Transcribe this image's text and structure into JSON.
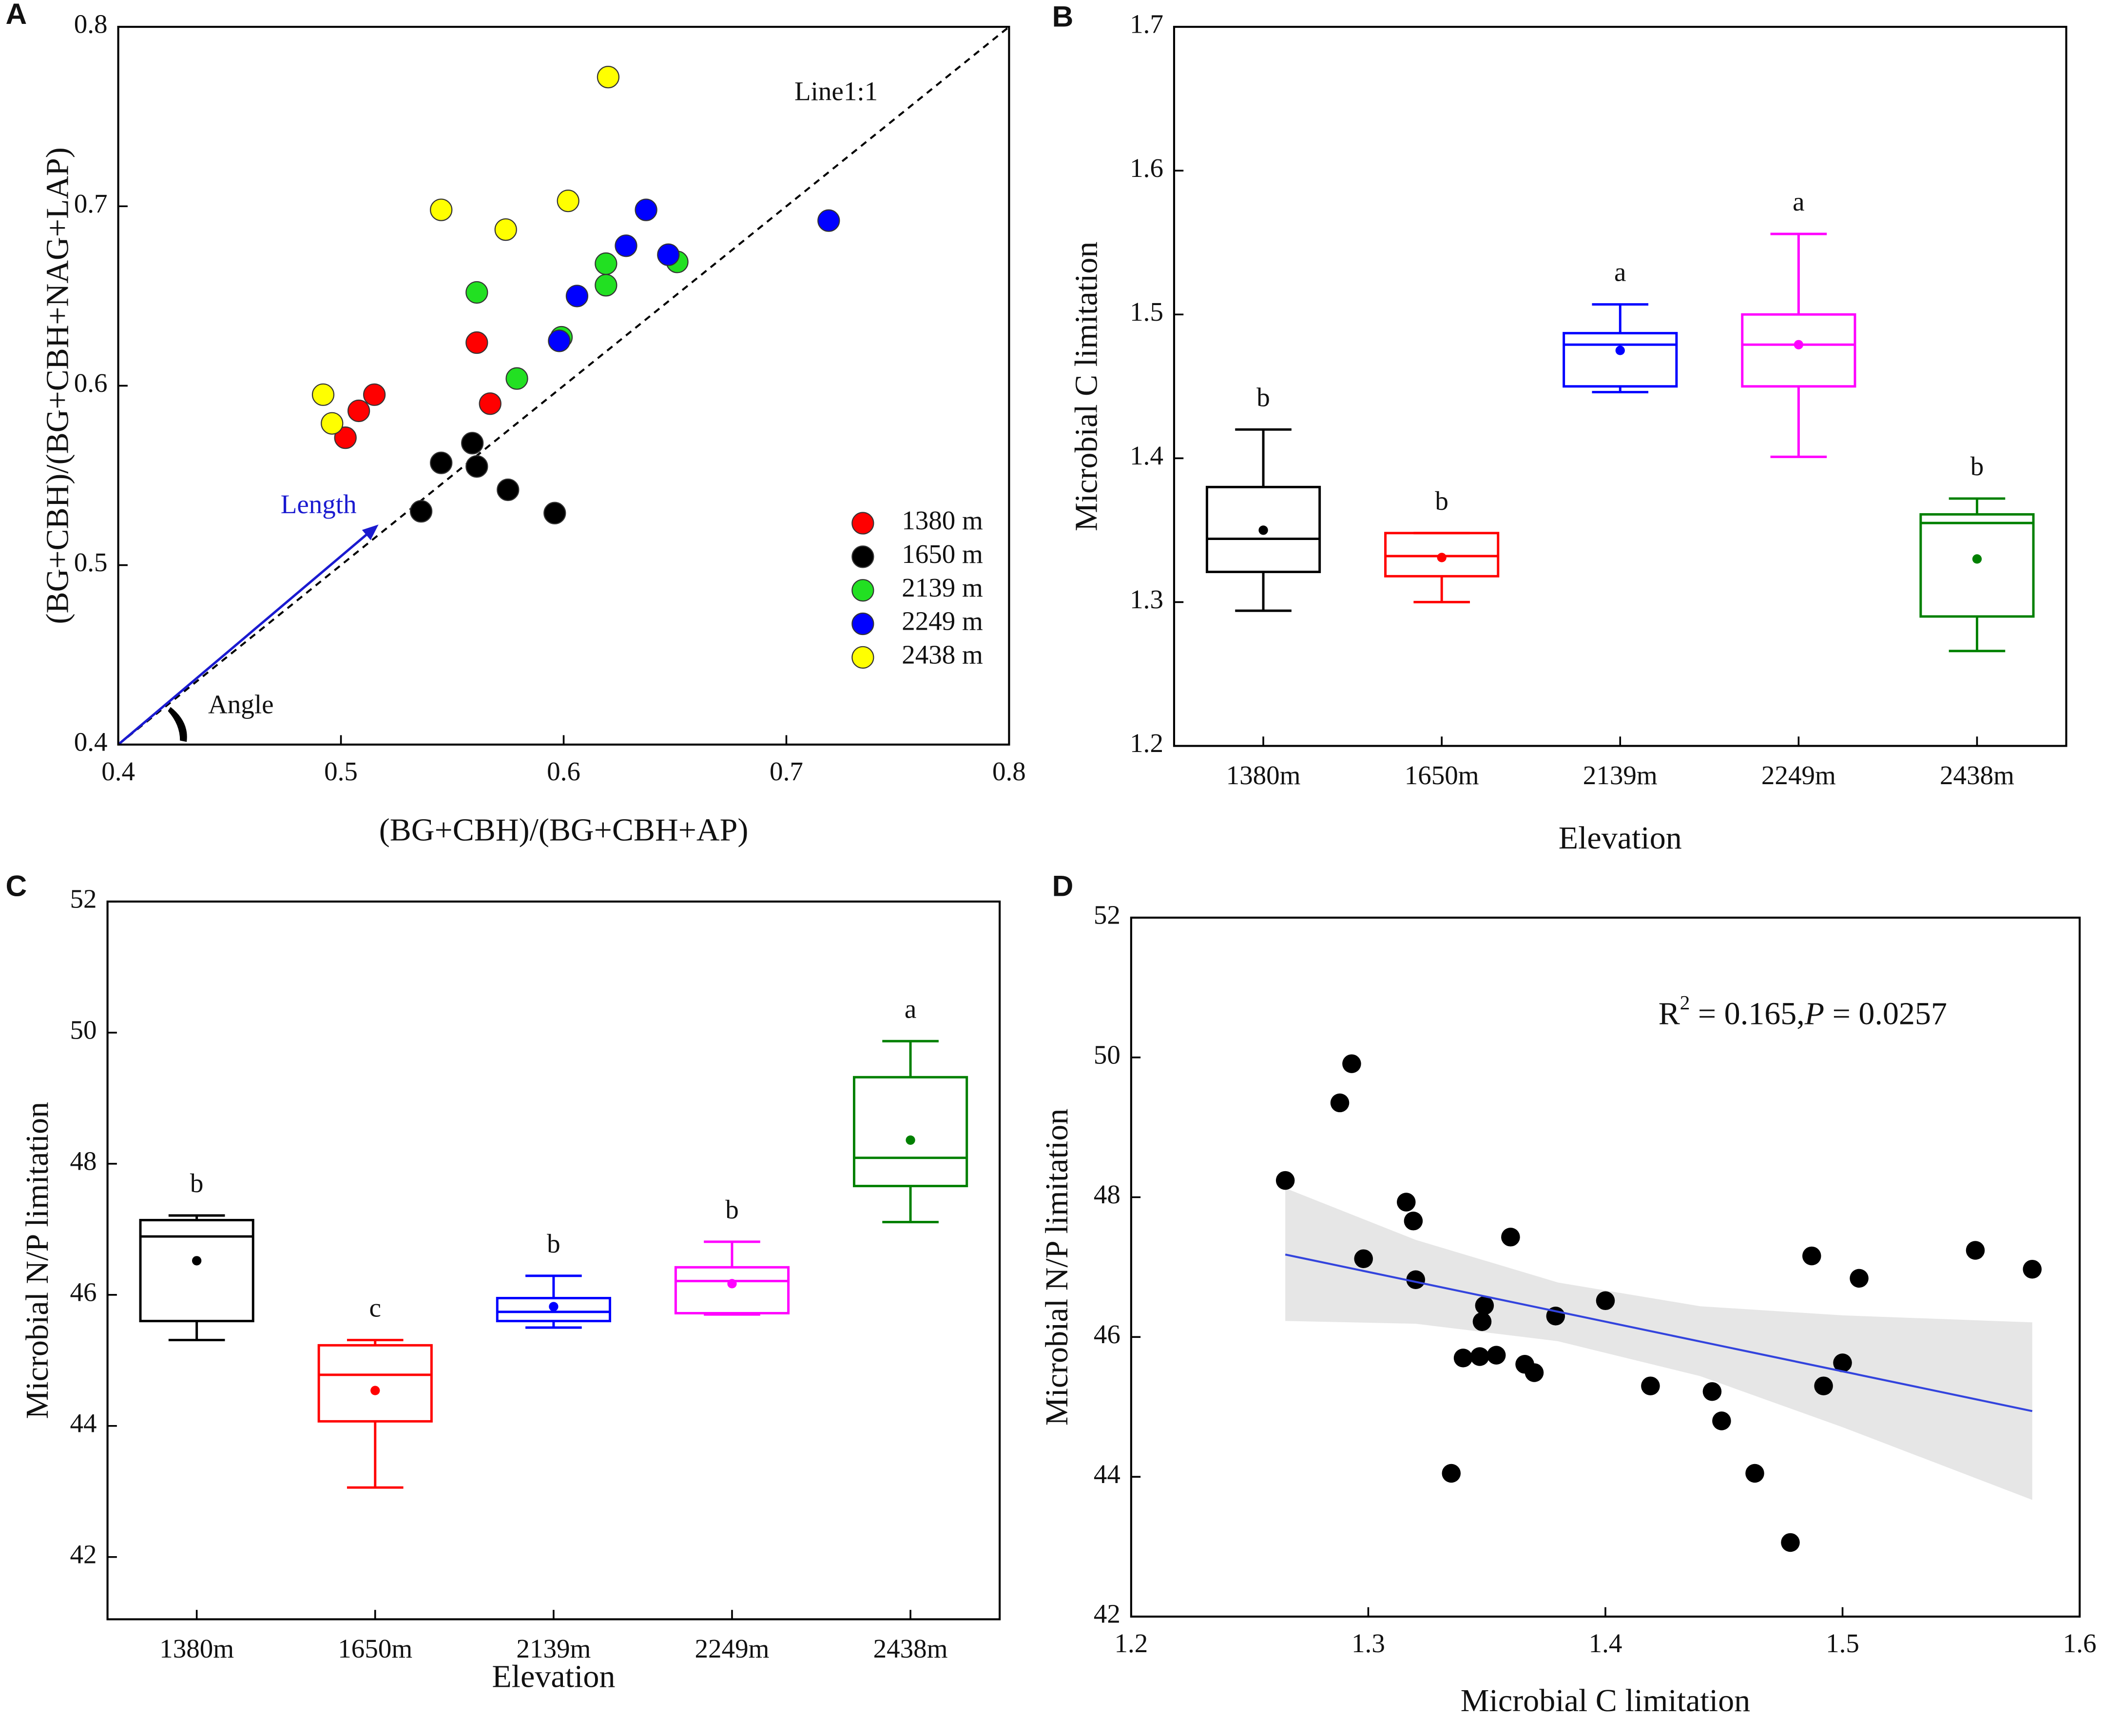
{
  "chart_data": [
    {
      "type": "scatter",
      "panel": "A",
      "x_label": "(BG+CBH)/(BG+CBH+AP)",
      "y_label": "(BG+CBH)/(BG+CBH+NAG+LAP)",
      "annotations": [
        "Line1:1",
        "Length",
        "Angle"
      ],
      "xlim": [
        0.4,
        0.8
      ],
      "ylim": [
        0.4,
        0.8
      ],
      "xticks": [
        0.4,
        0.5,
        0.6,
        0.7,
        0.8
      ],
      "yticks": [
        0.4,
        0.5,
        0.6,
        0.7,
        0.8
      ],
      "legend": "lower right",
      "series": [
        {
          "name": "1380 m",
          "color": "#ff0000",
          "x": [
            0.508,
            0.515,
            0.502,
            0.561,
            0.567
          ],
          "y": [
            0.586,
            0.595,
            0.571,
            0.624,
            0.59
          ]
        },
        {
          "name": "1650 m",
          "color": "#000000",
          "x": [
            0.536,
            0.545,
            0.559,
            0.561,
            0.575,
            0.596
          ],
          "y": [
            0.53,
            0.557,
            0.568,
            0.555,
            0.542,
            0.529
          ]
        },
        {
          "name": "2139 m",
          "color": "#22e022",
          "x": [
            0.561,
            0.579,
            0.599,
            0.619,
            0.619,
            0.651
          ],
          "y": [
            0.652,
            0.604,
            0.627,
            0.668,
            0.656,
            0.669
          ]
        },
        {
          "name": "2249 m",
          "color": "#0000ff",
          "x": [
            0.598,
            0.606,
            0.628,
            0.637,
            0.647,
            0.719
          ],
          "y": [
            0.625,
            0.65,
            0.678,
            0.698,
            0.673,
            0.692
          ]
        },
        {
          "name": "2438 m",
          "color": "#ffff00",
          "x": [
            0.492,
            0.496,
            0.545,
            0.574,
            0.602,
            0.62
          ],
          "y": [
            0.595,
            0.579,
            0.698,
            0.687,
            0.703,
            0.772
          ]
        }
      ]
    },
    {
      "type": "box",
      "panel": "B",
      "x_label": "Elevation",
      "y_label": "Microbial C limitation",
      "categories": [
        "1380m",
        "1650m",
        "2139m",
        "2249m",
        "2438m"
      ],
      "ylim": [
        1.2,
        1.7
      ],
      "yticks": [
        1.2,
        1.3,
        1.4,
        1.5,
        1.6,
        1.7
      ],
      "colors": [
        "#000000",
        "#ff0000",
        "#0000ff",
        "#ff00ff",
        "#008000"
      ],
      "whisker_low": [
        1.294,
        1.3,
        1.446,
        1.401,
        1.266
      ],
      "q1": [
        1.321,
        1.318,
        1.45,
        1.45,
        1.29
      ],
      "median": [
        1.344,
        1.332,
        1.479,
        1.479,
        1.355
      ],
      "q3": [
        1.38,
        1.348,
        1.487,
        1.5,
        1.361
      ],
      "whisker_high": [
        1.42,
        1.348,
        1.507,
        1.556,
        1.372
      ],
      "mean": [
        1.35,
        1.331,
        1.475,
        1.479,
        1.33
      ],
      "letters": [
        "b",
        "b",
        "a",
        "a",
        "b"
      ]
    },
    {
      "type": "box",
      "panel": "C",
      "x_label": "Elevation",
      "y_label": "Microbial N/P limitation",
      "categories": [
        "1380m",
        "1650m",
        "2139m",
        "2249m",
        "2438m"
      ],
      "ylim": [
        41.05,
        52
      ],
      "yticks": [
        42,
        44,
        46,
        48,
        50,
        52
      ],
      "colors": [
        "#000000",
        "#ff0000",
        "#0000ff",
        "#ff00ff",
        "#008000"
      ],
      "whisker_low": [
        45.31,
        43.06,
        45.5,
        45.7,
        47.11
      ],
      "q1": [
        45.6,
        44.07,
        45.6,
        45.72,
        47.66
      ],
      "median": [
        46.89,
        44.78,
        45.74,
        46.21,
        48.09
      ],
      "q3": [
        47.14,
        45.23,
        45.95,
        46.42,
        49.32
      ],
      "whisker_high": [
        47.21,
        45.31,
        46.29,
        46.81,
        49.87
      ],
      "mean": [
        46.52,
        44.54,
        45.82,
        46.17,
        48.36
      ],
      "letters": [
        "b",
        "c",
        "b",
        "b",
        "a"
      ]
    },
    {
      "type": "regression",
      "panel": "D",
      "x_label": "Microbial C limitation",
      "y_label": "Microbial N/P limitation",
      "annotation": [
        "R",
        "2",
        " = 0.165,",
        "P",
        " = 0.0257"
      ],
      "xlim": [
        1.2,
        1.6
      ],
      "ylim": [
        42,
        52
      ],
      "xticks": [
        1.2,
        1.3,
        1.4,
        1.5,
        1.6
      ],
      "yticks": [
        42,
        44,
        46,
        48,
        50,
        52
      ],
      "color": "#000000",
      "fit_color": "#3344dd",
      "band_color": "#e6e6e6",
      "x": [
        1.265,
        1.288,
        1.293,
        1.298,
        1.316,
        1.319,
        1.32,
        1.335,
        1.34,
        1.347,
        1.348,
        1.349,
        1.354,
        1.36,
        1.366,
        1.37,
        1.379,
        1.4,
        1.419,
        1.445,
        1.449,
        1.463,
        1.478,
        1.487,
        1.492,
        1.5,
        1.507,
        1.556,
        1.58
      ],
      "y": [
        48.24,
        49.35,
        49.91,
        47.12,
        47.93,
        47.66,
        46.82,
        44.05,
        45.7,
        45.72,
        46.22,
        46.45,
        45.74,
        47.43,
        45.61,
        45.49,
        46.3,
        46.52,
        45.3,
        45.22,
        44.8,
        44.05,
        43.06,
        47.16,
        45.3,
        45.63,
        46.84,
        47.24,
        46.97
      ],
      "fit": {
        "x": [
          1.265,
          1.58
        ],
        "y": [
          47.18,
          44.94
        ]
      },
      "band": {
        "x": [
          1.265,
          1.32,
          1.38,
          1.44,
          1.5,
          1.58
        ],
        "lower": [
          46.23,
          46.19,
          45.94,
          45.44,
          44.71,
          43.67
        ],
        "upper": [
          48.13,
          47.39,
          46.78,
          46.44,
          46.31,
          46.21
        ]
      }
    }
  ]
}
